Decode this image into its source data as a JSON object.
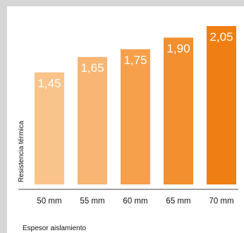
{
  "chart_data": {
    "type": "bar",
    "categories": [
      "50 mm",
      "55 mm",
      "60 mm",
      "65 mm",
      "70 mm"
    ],
    "values": [
      1.45,
      1.65,
      1.75,
      1.9,
      2.05
    ],
    "value_labels": [
      "1,45",
      "1,65",
      "1,75",
      "1,90",
      "2,05"
    ],
    "xlabel": "Espesor aislamiento",
    "ylabel": "Resistencia térmica",
    "ylim": [
      0,
      2.05
    ],
    "grid": false,
    "bar_colors": [
      "#f9c48a",
      "#f8b574",
      "#f6a04c",
      "#f28f2e",
      "#ef7f12"
    ],
    "axis_line_color": "#444444",
    "background": "#ffffff",
    "frame_color": "#d6d6d6"
  }
}
